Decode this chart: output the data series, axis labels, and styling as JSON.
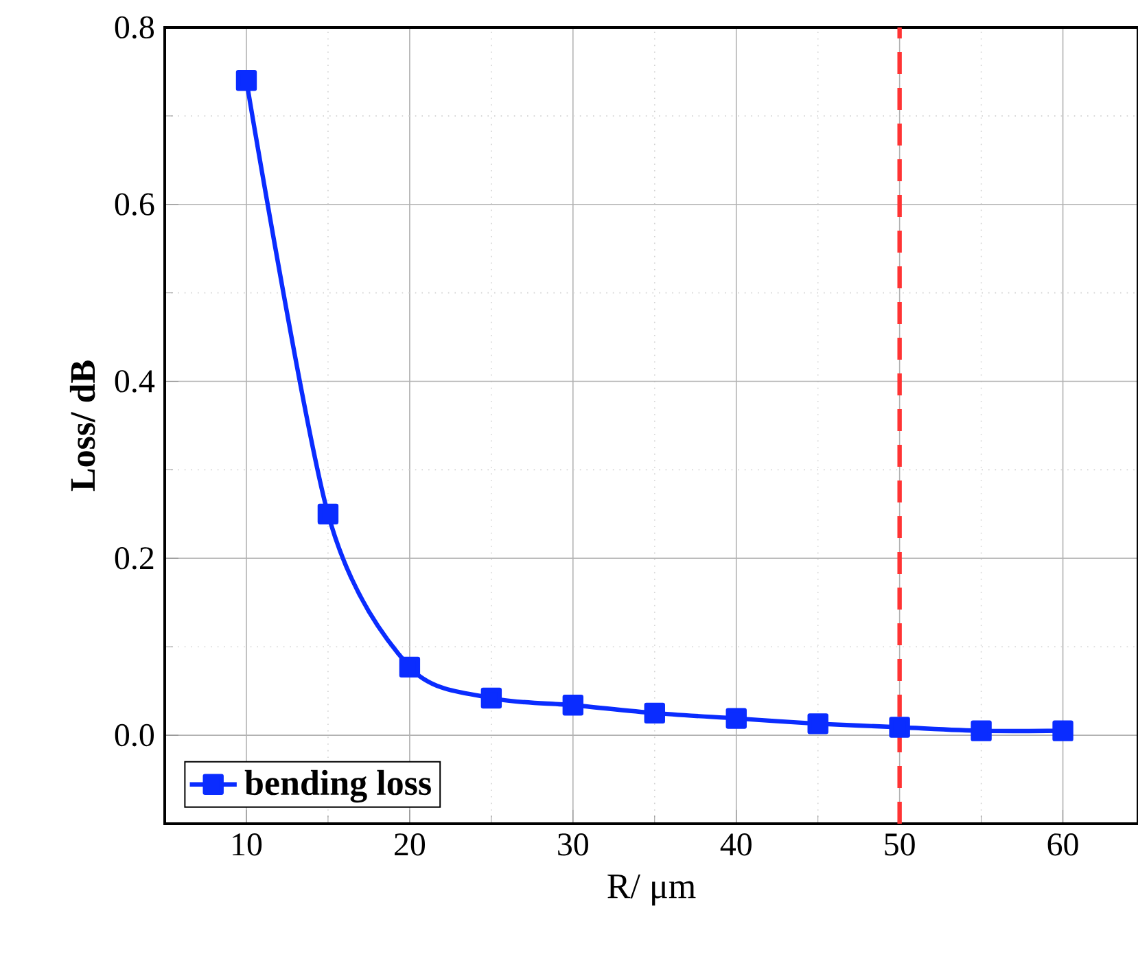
{
  "chart_data": {
    "type": "line",
    "xlabel": "R/ μm",
    "ylabel": "Loss/ dB",
    "xlim": [
      5,
      64.6
    ],
    "xticks": [
      10,
      20,
      30,
      40,
      50,
      60
    ],
    "ylim": [
      -0.1,
      0.8
    ],
    "yticks": [
      {
        "value": 0,
        "label": "0.0"
      },
      0.2,
      0.4,
      0.6,
      0.8
    ],
    "x": [
      10,
      15,
      20,
      25,
      30,
      35,
      40,
      45,
      50,
      55,
      60
    ],
    "series": [
      {
        "name": "bending loss",
        "color": "#0a2cff",
        "values": [
          0.74,
          0.25,
          0.077,
          0.042,
          0.034,
          0.025,
          0.019,
          0.013,
          0.009,
          0.005,
          0.005
        ]
      }
    ],
    "ref_lines": [
      {
        "axis": "x",
        "value": 50,
        "label": null,
        "color": "#ff3333",
        "line_style": "dashed"
      }
    ],
    "grid": true,
    "legend": "bottom left",
    "marker": "square",
    "line_style": "solid"
  }
}
